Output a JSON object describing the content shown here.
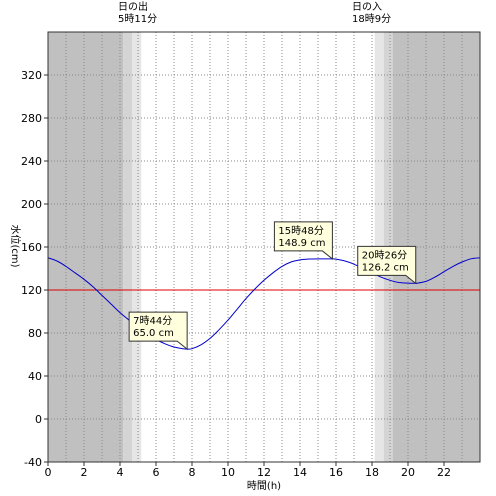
{
  "sun": {
    "sunrise_label": "日の出",
    "sunrise_time": "5時11分",
    "sunset_label": "日の入",
    "sunset_time": "18時9分"
  },
  "axis": {
    "xlabel": "時間(h)",
    "ylabel": "水位(cm)"
  },
  "colors": {
    "tide_line": "#0000cc",
    "reference_line": "#dd0000",
    "night": "#c0c0c0",
    "twilight_dark": "#d4d4d4",
    "twilight_light": "#e6e6e6",
    "callout_fill": "#ffffdd"
  },
  "annotations": [
    {
      "time": "7時44分",
      "level": "65.0 cm"
    },
    {
      "time": "15時48分",
      "level": "148.9 cm"
    },
    {
      "time": "20時26分",
      "level": "126.2 cm"
    }
  ],
  "chart_data": {
    "type": "line",
    "xlim": [
      0,
      24
    ],
    "ylim": [
      -40,
      360
    ],
    "xticks": [
      0,
      2,
      4,
      6,
      8,
      10,
      12,
      14,
      16,
      18,
      20,
      22
    ],
    "yticks": [
      -40,
      0,
      40,
      80,
      120,
      160,
      200,
      240,
      280,
      320
    ],
    "grid": true,
    "reference_level": 120,
    "sunrise_hour": 5.18,
    "sunset_hour": 18.15,
    "extrema": [
      {
        "x": 7.73,
        "y": 65.0
      },
      {
        "x": 15.8,
        "y": 148.9
      },
      {
        "x": 20.43,
        "y": 126.2
      }
    ],
    "series": [
      {
        "x": [
          0,
          0.5,
          1,
          1.5,
          2,
          2.5,
          3,
          3.5,
          4,
          4.5,
          5,
          5.5,
          6,
          6.5,
          7,
          7.5,
          7.73,
          8,
          8.5,
          9,
          9.5,
          10,
          10.5,
          11,
          11.5,
          12,
          12.5,
          13,
          13.5,
          14,
          14.5,
          15,
          15.5,
          15.8,
          16,
          16.5,
          17,
          17.5,
          18,
          18.5,
          19,
          19.5,
          20,
          20.43,
          20.5,
          21,
          21.5,
          22,
          22.5,
          23,
          23.5,
          24
        ],
        "y": [
          150,
          147,
          142,
          136,
          130,
          123,
          115,
          107,
          99,
          92,
          85,
          79,
          74,
          70,
          67,
          65.4,
          65.0,
          65.4,
          69,
          75,
          83,
          92,
          102,
          112,
          121,
          129,
          136,
          142,
          146,
          148,
          148.8,
          148.9,
          148.9,
          148.9,
          148.7,
          147,
          144,
          140,
          136,
          132,
          129,
          127,
          126.4,
          126.2,
          126.3,
          128,
          132,
          137,
          142,
          146,
          149,
          150
        ]
      }
    ]
  }
}
